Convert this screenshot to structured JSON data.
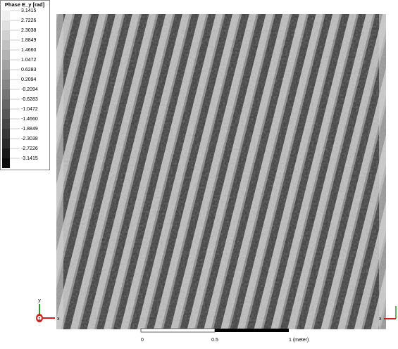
{
  "legend": {
    "title": "Phase E_y [rad]",
    "labels": [
      "3.1415",
      "2.7226",
      "2.3038",
      "1.8849",
      "1.4660",
      "1.0472",
      "0.6283",
      "0.2094",
      "-0.2094",
      "-0.6283",
      "-1.0472",
      "-1.4660",
      "-1.8849",
      "-2.3038",
      "-2.7226",
      "-3.1415"
    ]
  },
  "scale_bar": {
    "labels": [
      "0",
      "0.5",
      "1 (meter)"
    ]
  },
  "triad_left": {
    "y": "y",
    "z": "z",
    "x": "x"
  },
  "triad_right": {
    "x": "x"
  }
}
